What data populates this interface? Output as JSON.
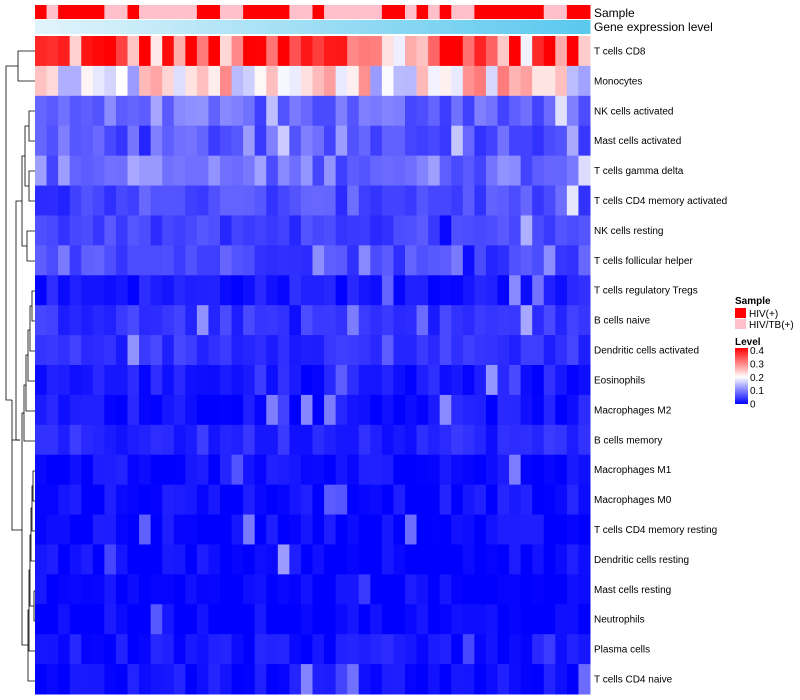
{
  "chart_data": {
    "type": "heatmap",
    "annotation_labels": {
      "sample": "Sample",
      "gene_expression": "Gene expression level"
    },
    "rows": [
      "T cells CD8",
      "Monocytes",
      "NK cells activated",
      "Mast cells activated",
      "T cells gamma delta",
      "T cells CD4 memory activated",
      "NK cells resting",
      "T cells follicular helper",
      "T cells regulatory  Tregs",
      "B cells naive",
      "Dendritic cells activated",
      "Eosinophils",
      "Macrophages M2",
      "B cells memory",
      "Macrophages M1",
      "Macrophages M0",
      "T cells CD4 memory resting",
      "Dendritic cells resting",
      "Mast cells resting",
      "Neutrophils",
      "Plasma cells",
      "T cells CD4 naive"
    ],
    "row_typical_level": [
      0.34,
      0.22,
      0.08,
      0.07,
      0.09,
      0.06,
      0.05,
      0.06,
      0.02,
      0.04,
      0.04,
      0.02,
      0.015,
      0.03,
      0.01,
      0.01,
      0.005,
      0.005,
      0.003,
      0.002,
      0.015,
      0.01
    ],
    "sample_groups": [
      "HIV(+)",
      "HIV/TB(+)",
      "HIV(+)",
      "HIV(+)",
      "HIV(+)",
      "HIV(+)",
      "HIV/TB(+)",
      "HIV/TB(+)",
      "HIV(+)",
      "HIV/TB(+)",
      "HIV/TB(+)",
      "HIV/TB(+)",
      "HIV/TB(+)",
      "HIV/TB(+)",
      "HIV(+)",
      "HIV(+)",
      "HIV/TB(+)",
      "HIV/TB(+)",
      "HIV(+)",
      "HIV(+)",
      "HIV(+)",
      "HIV(+)",
      "HIV/TB(+)",
      "HIV/TB(+)",
      "HIV(+)",
      "HIV/TB(+)",
      "HIV/TB(+)",
      "HIV/TB(+)",
      "HIV/TB(+)",
      "HIV/TB(+)",
      "HIV(+)",
      "HIV(+)",
      "HIV/TB(+)",
      "HIV(+)",
      "HIV/TB(+)",
      "HIV(+)",
      "HIV/TB(+)",
      "HIV/TB(+)",
      "HIV(+)",
      "HIV(+)",
      "HIV(+)",
      "HIV(+)",
      "HIV(+)",
      "HIV(+)",
      "HIV/TB(+)",
      "HIV/TB(+)",
      "HIV(+)",
      "HIV(+)"
    ],
    "legend": {
      "sample_title": "Sample",
      "sample_entries": [
        {
          "label": "HIV(+)",
          "color": "#ff0000"
        },
        {
          "label": "HIV/TB(+)",
          "color": "#ffc0cb"
        }
      ],
      "level_title": "Level",
      "level_ticks": [
        "0.4",
        "0.3",
        "0.2",
        "0.1",
        "0"
      ],
      "level_range": [
        0,
        0.42
      ],
      "level_colors": [
        "#0000ff",
        "#ffffff",
        "#ff0000"
      ]
    },
    "annotation_color_range": [
      "#e0f3fb",
      "#5bc8ee"
    ]
  }
}
